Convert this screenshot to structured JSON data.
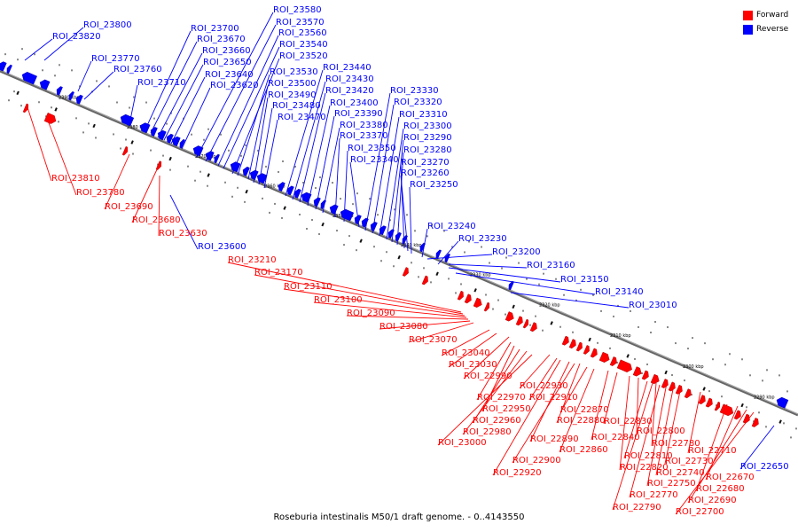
{
  "caption": "Roseburia intestinalis M50/1 draft genome. - 0..4143550",
  "legend": [
    {
      "label": "Forward",
      "color": "#ff0000"
    },
    {
      "label": "Reverse",
      "color": "#0000ff"
    }
  ],
  "colors": {
    "forward": "#ff0000",
    "reverse": "#0000ff",
    "backbone": "#777777",
    "tick": "#000000"
  },
  "ticks": [
    "2390 kbp",
    "2380 kbp",
    "2370 kbp",
    "2360 kbp",
    "2350 kbp",
    "2340 kbp",
    "2330 kbp",
    "2320 kbp",
    "2310 kbp",
    "2300 kbp",
    "2290 kbp"
  ],
  "reverse_labels": [
    "ROI_23800",
    "ROI_23820",
    "ROI_23770",
    "ROI_23760",
    "ROI_23710",
    "ROI_23700",
    "ROI_23670",
    "ROI_23660",
    "ROI_23650",
    "ROI_23640",
    "ROI_23620",
    "ROI_23580",
    "ROI_23570",
    "ROI_23560",
    "ROI_23540",
    "ROI_23520",
    "ROI_23530",
    "ROI_23500",
    "ROI_23490",
    "ROI_23480",
    "ROI_23470",
    "ROI_23440",
    "ROI_23430",
    "ROI_23420",
    "ROI_23400",
    "ROI_23390",
    "ROI_23380",
    "ROI_23370",
    "ROI_23350",
    "ROI_23340",
    "ROI_23330",
    "ROI_23320",
    "ROI_23310",
    "ROI_23300",
    "ROI_23290",
    "ROI_23280",
    "ROI_23270",
    "ROI_23260",
    "ROI_23250",
    "ROI_23240",
    "ROI_23230",
    "ROI_23200",
    "ROI_23160",
    "ROI_23150",
    "ROI_23140",
    "ROI_23010",
    "ROI_23600",
    "ROI_22650"
  ],
  "forward_labels": [
    "ROI_23810",
    "ROI_23780",
    "ROI_23690",
    "ROI_23680",
    "ROI_23630",
    "ROI_23210",
    "ROI_23170",
    "ROI_23110",
    "ROI_23100",
    "ROI_23090",
    "ROI_23080",
    "ROI_23070",
    "ROI_23040",
    "ROI_23030",
    "ROI_22990",
    "ROI_22930",
    "ROI_22970",
    "ROI_22910",
    "ROI_22950",
    "ROI_22960",
    "ROI_22870",
    "ROI_22880",
    "ROI_22980",
    "ROI_22890",
    "ROI_22830",
    "ROI_23000",
    "ROI_22840",
    "ROI_22800",
    "ROI_22860",
    "ROI_22780",
    "ROI_22900",
    "ROI_22810",
    "ROI_22710",
    "ROI_22820",
    "ROI_22730",
    "ROI_22920",
    "ROI_22740",
    "ROI_22670",
    "ROI_22750",
    "ROI_22680",
    "ROI_22770",
    "ROI_22690",
    "ROI_22790",
    "ROI_22700"
  ]
}
